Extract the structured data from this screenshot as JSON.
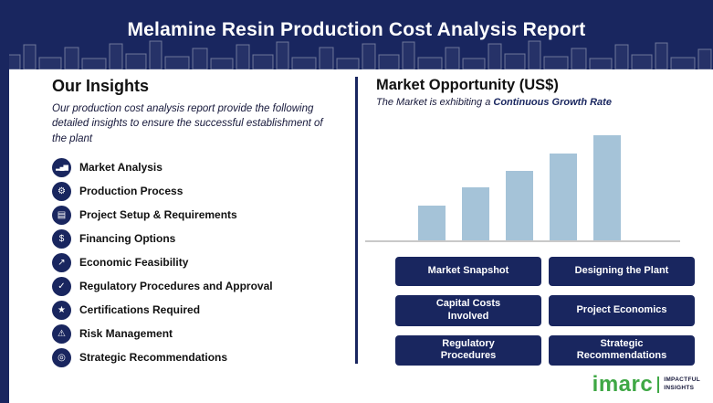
{
  "header": {
    "title": "Melamine Resin Production Cost Analysis Report"
  },
  "insights": {
    "heading": "Our Insights",
    "subtitle": "Our production cost analysis report provide the following detailed insights to ensure the successful establishment of the plant",
    "items": [
      {
        "label": "Market Analysis",
        "icon": "bar-chart-icon",
        "glyph": "▂▄▆"
      },
      {
        "label": "Production Process",
        "icon": "gear-icon",
        "glyph": "⚙"
      },
      {
        "label": "Project Setup & Requirements",
        "icon": "clipboard-icon",
        "glyph": "▤"
      },
      {
        "label": "Financing Options",
        "icon": "dollar-icon",
        "glyph": "$"
      },
      {
        "label": "Economic Feasibility",
        "icon": "growth-arrow-icon",
        "glyph": "↗"
      },
      {
        "label": "Regulatory Procedures and Approval",
        "icon": "check-icon",
        "glyph": "✓"
      },
      {
        "label": "Certifications Required",
        "icon": "certificate-icon",
        "glyph": "★"
      },
      {
        "label": "Risk Management",
        "icon": "warning-icon",
        "glyph": "⚠"
      },
      {
        "label": "Strategic Recommendations",
        "icon": "target-icon",
        "glyph": "◎"
      }
    ]
  },
  "market": {
    "heading": "Market Opportunity (US$)",
    "subtitle_prefix": "The Market is exhibiting a ",
    "subtitle_highlight": "Continuous Growth Rate",
    "buttons": [
      "Market Snapshot",
      "Designing the Plant",
      "Capital Costs\nInvolved",
      "Project Economics",
      "Regulatory\nProcedures",
      "Strategic\nRecommendations"
    ]
  },
  "chart_data": {
    "type": "bar",
    "title": "Market Opportunity (US$)",
    "categories": [
      "",
      "",
      "",
      "",
      ""
    ],
    "values": [
      33,
      50,
      66,
      83,
      100
    ],
    "xlabel": "",
    "ylabel": "",
    "ylim": [
      0,
      100
    ],
    "axis_labels_visible": false,
    "legend": "none",
    "note": "Unlabeled illustrative growth bars; values are relative heights (tallest = 100)",
    "bar_color": "#a5c3d8"
  },
  "logo": {
    "name": "imarc",
    "tagline_line1": "IMPACTFUL",
    "tagline_line2": "INSIGHTS"
  },
  "colors": {
    "navy": "#19265f",
    "bar": "#a5c3d8",
    "green": "#3fa845",
    "baseline_gray": "#c9c9c9"
  }
}
